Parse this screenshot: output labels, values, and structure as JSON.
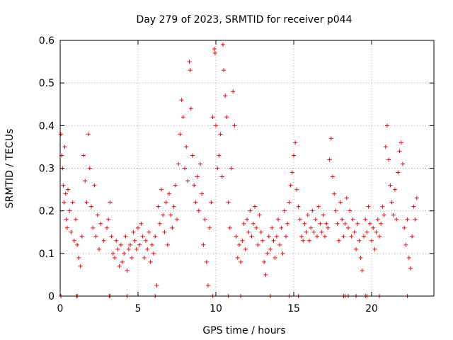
{
  "chart_data": {
    "type": "scatter",
    "title": "Day 279 of 2023, SRMTID for receiver p044",
    "xlabel": "GPS time / hours",
    "ylabel": "SRMTID / TECUs",
    "xlim": [
      0,
      24
    ],
    "ylim": [
      0,
      0.6
    ],
    "xticks": [
      {
        "value": 0,
        "label": "0"
      },
      {
        "value": 5,
        "label": "5"
      },
      {
        "value": 10,
        "label": "10"
      },
      {
        "value": 15,
        "label": "15"
      },
      {
        "value": 20,
        "label": "20"
      }
    ],
    "yticks": [
      {
        "value": 0,
        "label": "0"
      },
      {
        "value": 0.1,
        "label": "0.1"
      },
      {
        "value": 0.2,
        "label": "0.2"
      },
      {
        "value": 0.3,
        "label": "0.3"
      },
      {
        "value": 0.4,
        "label": "0.4"
      },
      {
        "value": 0.5,
        "label": "0.5"
      },
      {
        "value": 0.6,
        "label": "0.6"
      }
    ],
    "grid": true,
    "marker": "+",
    "series_color": "#ff0000",
    "series": [
      {
        "name": "SRMTID",
        "points": [
          [
            0.05,
            0.38
          ],
          [
            0.1,
            0.33
          ],
          [
            0.15,
            0.3
          ],
          [
            0.2,
            0.26
          ],
          [
            0.25,
            0.22
          ],
          [
            0.3,
            0.35
          ],
          [
            0.35,
            0.24
          ],
          [
            0.4,
            0.18
          ],
          [
            0.45,
            0.16
          ],
          [
            0.5,
            0.25
          ],
          [
            0.6,
            0.2
          ],
          [
            0.7,
            0.15
          ],
          [
            0.8,
            0.22
          ],
          [
            0.9,
            0.13
          ],
          [
            1.0,
            0.18
          ],
          [
            1.1,
            0.12
          ],
          [
            1.2,
            0.09
          ],
          [
            1.3,
            0.07
          ],
          [
            1.4,
            0.14
          ],
          [
            1.5,
            0.33
          ],
          [
            1.6,
            0.27
          ],
          [
            1.7,
            0.22
          ],
          [
            1.8,
            0.38
          ],
          [
            1.9,
            0.3
          ],
          [
            2.0,
            0.21
          ],
          [
            2.1,
            0.16
          ],
          [
            2.2,
            0.26
          ],
          [
            2.3,
            0.14
          ],
          [
            2.4,
            0.19
          ],
          [
            2.5,
            0.11
          ],
          [
            2.6,
            0.17
          ],
          [
            2.8,
            0.13
          ],
          [
            3.0,
            0.16
          ],
          [
            3.1,
            0.18
          ],
          [
            3.2,
            0.22
          ],
          [
            3.3,
            0.14
          ],
          [
            3.4,
            0.1
          ],
          [
            3.5,
            0.09
          ],
          [
            3.6,
            0.13
          ],
          [
            3.7,
            0.11
          ],
          [
            3.8,
            0.07
          ],
          [
            3.9,
            0.12
          ],
          [
            4.0,
            0.08
          ],
          [
            4.1,
            0.1
          ],
          [
            4.2,
            0.14
          ],
          [
            4.3,
            0.06
          ],
          [
            4.4,
            0.11
          ],
          [
            4.5,
            0.12
          ],
          [
            4.6,
            0.09
          ],
          [
            4.7,
            0.15
          ],
          [
            4.8,
            0.13
          ],
          [
            4.9,
            0.11
          ],
          [
            5.0,
            0.16
          ],
          [
            5.1,
            0.12
          ],
          [
            5.2,
            0.17
          ],
          [
            5.3,
            0.14
          ],
          [
            5.4,
            0.09
          ],
          [
            5.5,
            0.13
          ],
          [
            5.6,
            0.11
          ],
          [
            5.7,
            0.15
          ],
          [
            5.8,
            0.08
          ],
          [
            5.9,
            0.12
          ],
          [
            6.0,
            0.1
          ],
          [
            6.1,
            0.14
          ],
          [
            6.2,
            0.025
          ],
          [
            6.3,
            0.21
          ],
          [
            6.4,
            0.17
          ],
          [
            6.5,
            0.25
          ],
          [
            6.6,
            0.19
          ],
          [
            6.7,
            0.15
          ],
          [
            6.8,
            0.22
          ],
          [
            6.9,
            0.12
          ],
          [
            7.0,
            0.24
          ],
          [
            7.1,
            0.19
          ],
          [
            7.2,
            0.16
          ],
          [
            7.3,
            0.21
          ],
          [
            7.4,
            0.26
          ],
          [
            7.5,
            0.18
          ],
          [
            7.6,
            0.31
          ],
          [
            7.7,
            0.38
          ],
          [
            7.8,
            0.46
          ],
          [
            7.9,
            0.42
          ],
          [
            8.0,
            0.3
          ],
          [
            8.1,
            0.35
          ],
          [
            8.2,
            0.27
          ],
          [
            8.3,
            0.55
          ],
          [
            8.35,
            0.53
          ],
          [
            8.4,
            0.44
          ],
          [
            8.5,
            0.33
          ],
          [
            8.6,
            0.26
          ],
          [
            8.7,
            0.22
          ],
          [
            8.8,
            0.28
          ],
          [
            8.9,
            0.2
          ],
          [
            9.0,
            0.31
          ],
          [
            9.1,
            0.24
          ],
          [
            9.2,
            0.12
          ],
          [
            9.3,
            0.18
          ],
          [
            9.4,
            0.08
          ],
          [
            9.5,
            0.025
          ],
          [
            9.6,
            0.16
          ],
          [
            9.7,
            0.22
          ],
          [
            9.8,
            0.42
          ],
          [
            9.9,
            0.58
          ],
          [
            9.95,
            0.57
          ],
          [
            10.0,
            0.4
          ],
          [
            10.1,
            0.3
          ],
          [
            10.2,
            0.33
          ],
          [
            10.3,
            0.38
          ],
          [
            10.4,
            0.28
          ],
          [
            10.45,
            0.59
          ],
          [
            10.5,
            0.53
          ],
          [
            10.6,
            0.47
          ],
          [
            10.7,
            0.42
          ],
          [
            10.8,
            0.22
          ],
          [
            10.9,
            0.16
          ],
          [
            11.0,
            0.3
          ],
          [
            11.1,
            0.48
          ],
          [
            11.2,
            0.4
          ],
          [
            11.3,
            0.14
          ],
          [
            11.4,
            0.09
          ],
          [
            11.5,
            0.12
          ],
          [
            11.6,
            0.08
          ],
          [
            11.7,
            0.13
          ],
          [
            11.8,
            0.17
          ],
          [
            11.9,
            0.11
          ],
          [
            12.0,
            0.18
          ],
          [
            12.1,
            0.15
          ],
          [
            12.2,
            0.2
          ],
          [
            12.3,
            0.14
          ],
          [
            12.4,
            0.17
          ],
          [
            12.5,
            0.21
          ],
          [
            12.6,
            0.16
          ],
          [
            12.7,
            0.12
          ],
          [
            12.8,
            0.19
          ],
          [
            12.9,
            0.15
          ],
          [
            13.0,
            0.13
          ],
          [
            13.1,
            0.08
          ],
          [
            13.2,
            0.05
          ],
          [
            13.3,
            0.1
          ],
          [
            13.4,
            0.14
          ],
          [
            13.5,
            0.11
          ],
          [
            13.6,
            0.16
          ],
          [
            13.7,
            0.13
          ],
          [
            13.8,
            0.09
          ],
          [
            13.9,
            0.14
          ],
          [
            14.0,
            0.18
          ],
          [
            14.1,
            0.12
          ],
          [
            14.2,
            0.16
          ],
          [
            14.3,
            0.1
          ],
          [
            14.4,
            0.2
          ],
          [
            14.5,
            0.14
          ],
          [
            14.6,
            0.17
          ],
          [
            14.7,
            0.22
          ],
          [
            14.8,
            0.26
          ],
          [
            14.9,
            0.29
          ],
          [
            15.0,
            0.33
          ],
          [
            15.1,
            0.36
          ],
          [
            15.2,
            0.25
          ],
          [
            15.3,
            0.21
          ],
          [
            15.4,
            0.18
          ],
          [
            15.5,
            0.14
          ],
          [
            15.6,
            0.13
          ],
          [
            15.7,
            0.17
          ],
          [
            15.8,
            0.15
          ],
          [
            15.9,
            0.19
          ],
          [
            16.0,
            0.13
          ],
          [
            16.1,
            0.16
          ],
          [
            16.2,
            0.2
          ],
          [
            16.3,
            0.15
          ],
          [
            16.4,
            0.18
          ],
          [
            16.5,
            0.14
          ],
          [
            16.6,
            0.21
          ],
          [
            16.7,
            0.17
          ],
          [
            16.8,
            0.15
          ],
          [
            16.9,
            0.19
          ],
          [
            17.0,
            0.14
          ],
          [
            17.1,
            0.17
          ],
          [
            17.2,
            0.16
          ],
          [
            17.3,
            0.32
          ],
          [
            17.4,
            0.37
          ],
          [
            17.5,
            0.28
          ],
          [
            17.6,
            0.24
          ],
          [
            17.7,
            0.2
          ],
          [
            17.8,
            0.17
          ],
          [
            17.9,
            0.13
          ],
          [
            18.0,
            0.22
          ],
          [
            18.1,
            0.18
          ],
          [
            18.2,
            0.14
          ],
          [
            18.3,
            0.17
          ],
          [
            18.4,
            0.23
          ],
          [
            18.5,
            0.16
          ],
          [
            18.6,
            0.2
          ],
          [
            18.7,
            0.14
          ],
          [
            18.8,
            0.18
          ],
          [
            18.9,
            0.15
          ],
          [
            19.0,
            0.11
          ],
          [
            19.1,
            0.17
          ],
          [
            19.2,
            0.13
          ],
          [
            19.3,
            0.09
          ],
          [
            19.4,
            0.06
          ],
          [
            19.5,
            0.14
          ],
          [
            19.6,
            0.18
          ],
          [
            19.7,
            0.15
          ],
          [
            19.8,
            0.21
          ],
          [
            19.9,
            0.17
          ],
          [
            20.0,
            0.13
          ],
          [
            20.1,
            0.16
          ],
          [
            20.2,
            0.11
          ],
          [
            20.3,
            0.15
          ],
          [
            20.4,
            0.18
          ],
          [
            20.5,
            0.14
          ],
          [
            20.6,
            0.17
          ],
          [
            20.7,
            0.21
          ],
          [
            20.8,
            0.19
          ],
          [
            20.9,
            0.35
          ],
          [
            21.0,
            0.4
          ],
          [
            21.1,
            0.32
          ],
          [
            21.2,
            0.26
          ],
          [
            21.3,
            0.22
          ],
          [
            21.4,
            0.19
          ],
          [
            21.5,
            0.25
          ],
          [
            21.6,
            0.18
          ],
          [
            21.7,
            0.29
          ],
          [
            21.8,
            0.34
          ],
          [
            21.9,
            0.36
          ],
          [
            22.0,
            0.31
          ],
          [
            22.1,
            0.16
          ],
          [
            22.2,
            0.12
          ],
          [
            22.3,
            0.18
          ],
          [
            22.4,
            0.09
          ],
          [
            22.5,
            0.065
          ],
          [
            22.6,
            0.14
          ],
          [
            22.7,
            0.21
          ],
          [
            22.8,
            0.18
          ],
          [
            22.9,
            0.23
          ],
          [
            0.05,
            0.0
          ],
          [
            1.05,
            0.0
          ],
          [
            1.1,
            0.0
          ],
          [
            3.15,
            0.0
          ],
          [
            3.2,
            0.0
          ],
          [
            4.3,
            0.0
          ],
          [
            6.1,
            0.0
          ],
          [
            9.8,
            0.0
          ],
          [
            10.8,
            0.0
          ],
          [
            11.6,
            0.0
          ],
          [
            13.5,
            0.0
          ],
          [
            14.7,
            0.0
          ],
          [
            15.3,
            0.0
          ],
          [
            18.2,
            0.0
          ],
          [
            18.3,
            0.0
          ],
          [
            18.5,
            0.0
          ],
          [
            19.0,
            0.0
          ],
          [
            19.6,
            0.0
          ],
          [
            19.7,
            0.0
          ],
          [
            20.5,
            0.0
          ],
          [
            22.3,
            0.0
          ]
        ]
      }
    ]
  }
}
